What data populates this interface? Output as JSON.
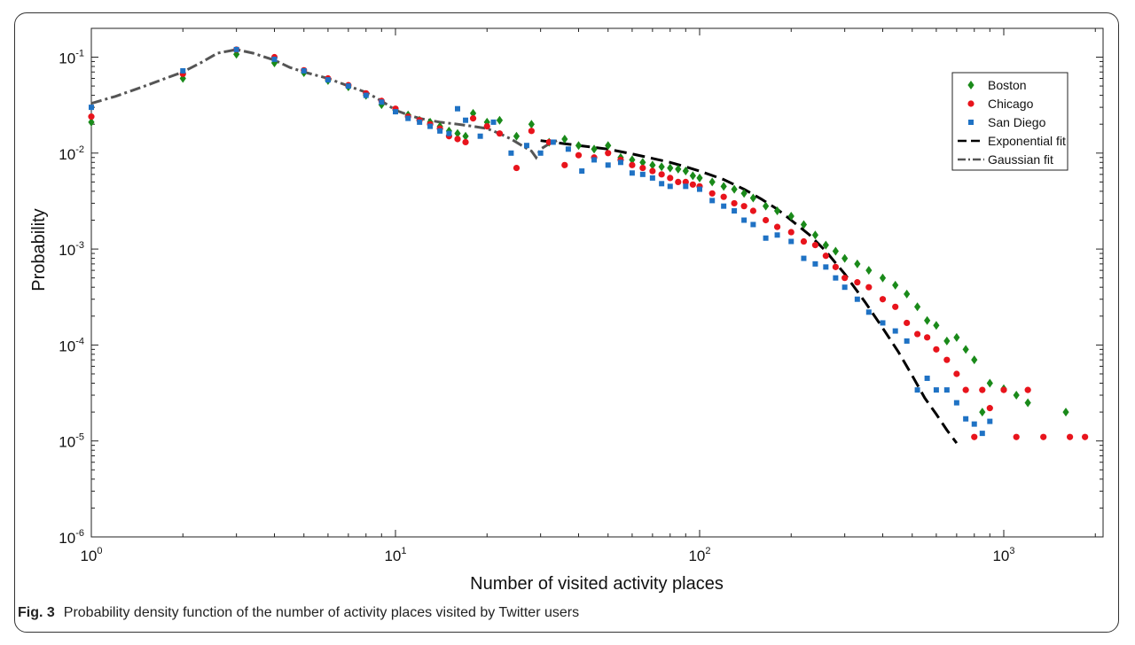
{
  "chart_data": {
    "type": "scatter",
    "xscale": "log",
    "yscale": "log",
    "xlim": [
      1,
      2000
    ],
    "ylim": [
      1e-06,
      0.2
    ],
    "xlabel": "Number of visited activity places",
    "ylabel": "Probability",
    "grid": false,
    "legend_position": "top-right",
    "x_ticks": [
      {
        "base": "10",
        "exp": "0",
        "value": 1
      },
      {
        "base": "10",
        "exp": "1",
        "value": 10
      },
      {
        "base": "10",
        "exp": "2",
        "value": 100
      },
      {
        "base": "10",
        "exp": "3",
        "value": 1000
      }
    ],
    "y_ticks": [
      {
        "base": "10",
        "exp": "-6",
        "value": 1e-06
      },
      {
        "base": "10",
        "exp": "-5",
        "value": 1e-05
      },
      {
        "base": "10",
        "exp": "-4",
        "value": 0.0001
      },
      {
        "base": "10",
        "exp": "-3",
        "value": 0.001
      },
      {
        "base": "10",
        "exp": "-2",
        "value": 0.01
      },
      {
        "base": "10",
        "exp": "-1",
        "value": 0.1
      }
    ],
    "series": [
      {
        "name": "Boston",
        "kind": "scatter",
        "marker": "diamond",
        "color": "#1a8a1a",
        "points": [
          [
            1,
            0.021
          ],
          [
            2,
            0.06
          ],
          [
            3,
            0.107
          ],
          [
            4,
            0.087
          ],
          [
            5,
            0.069
          ],
          [
            6,
            0.057
          ],
          [
            7,
            0.049
          ],
          [
            8,
            0.04
          ],
          [
            9,
            0.032
          ],
          [
            10,
            0.028
          ],
          [
            11,
            0.025
          ],
          [
            12,
            0.022
          ],
          [
            13,
            0.021
          ],
          [
            14,
            0.019
          ],
          [
            15,
            0.017
          ],
          [
            16,
            0.016
          ],
          [
            17,
            0.015
          ],
          [
            18,
            0.026
          ],
          [
            20,
            0.021
          ],
          [
            22,
            0.022
          ],
          [
            25,
            0.015
          ],
          [
            28,
            0.02
          ],
          [
            32,
            0.013
          ],
          [
            36,
            0.014
          ],
          [
            40,
            0.012
          ],
          [
            45,
            0.011
          ],
          [
            50,
            0.012
          ],
          [
            55,
            0.009
          ],
          [
            60,
            0.0085
          ],
          [
            65,
            0.008
          ],
          [
            70,
            0.0075
          ],
          [
            75,
            0.0072
          ],
          [
            80,
            0.007
          ],
          [
            85,
            0.0068
          ],
          [
            90,
            0.0065
          ],
          [
            95,
            0.0058
          ],
          [
            100,
            0.0055
          ],
          [
            110,
            0.005
          ],
          [
            120,
            0.0045
          ],
          [
            130,
            0.0042
          ],
          [
            140,
            0.0038
          ],
          [
            150,
            0.0034
          ],
          [
            165,
            0.0028
          ],
          [
            180,
            0.0025
          ],
          [
            200,
            0.0022
          ],
          [
            220,
            0.0018
          ],
          [
            240,
            0.0014
          ],
          [
            260,
            0.0011
          ],
          [
            280,
            0.00095
          ],
          [
            300,
            0.0008
          ],
          [
            330,
            0.0007
          ],
          [
            360,
            0.0006
          ],
          [
            400,
            0.0005
          ],
          [
            440,
            0.00042
          ],
          [
            480,
            0.00034
          ],
          [
            520,
            0.00025
          ],
          [
            560,
            0.00018
          ],
          [
            600,
            0.00016
          ],
          [
            650,
            0.00011
          ],
          [
            700,
            0.00012
          ],
          [
            750,
            9e-05
          ],
          [
            800,
            7e-05
          ],
          [
            850,
            2e-05
          ],
          [
            900,
            4e-05
          ],
          [
            1000,
            3.5e-05
          ],
          [
            1100,
            3e-05
          ],
          [
            1200,
            2.5e-05
          ],
          [
            1600,
            2e-05
          ]
        ]
      },
      {
        "name": "Chicago",
        "kind": "scatter",
        "marker": "circle",
        "color": "#e8141c",
        "points": [
          [
            1,
            0.024
          ],
          [
            2,
            0.067
          ],
          [
            3,
            0.12
          ],
          [
            4,
            0.1
          ],
          [
            5,
            0.073
          ],
          [
            6,
            0.06
          ],
          [
            7,
            0.051
          ],
          [
            8,
            0.042
          ],
          [
            9,
            0.035
          ],
          [
            10,
            0.029
          ],
          [
            11,
            0.024
          ],
          [
            12,
            0.022
          ],
          [
            13,
            0.02
          ],
          [
            14,
            0.018
          ],
          [
            15,
            0.015
          ],
          [
            16,
            0.014
          ],
          [
            17,
            0.013
          ],
          [
            18,
            0.023
          ],
          [
            20,
            0.019
          ],
          [
            22,
            0.016
          ],
          [
            25,
            0.007
          ],
          [
            28,
            0.017
          ],
          [
            32,
            0.013
          ],
          [
            36,
            0.0075
          ],
          [
            40,
            0.0095
          ],
          [
            45,
            0.009
          ],
          [
            50,
            0.01
          ],
          [
            55,
            0.0085
          ],
          [
            60,
            0.0075
          ],
          [
            65,
            0.007
          ],
          [
            70,
            0.0065
          ],
          [
            75,
            0.006
          ],
          [
            80,
            0.0055
          ],
          [
            85,
            0.005
          ],
          [
            90,
            0.005
          ],
          [
            95,
            0.0047
          ],
          [
            100,
            0.0045
          ],
          [
            110,
            0.0038
          ],
          [
            120,
            0.0035
          ],
          [
            130,
            0.003
          ],
          [
            140,
            0.0028
          ],
          [
            150,
            0.0025
          ],
          [
            165,
            0.002
          ],
          [
            180,
            0.0017
          ],
          [
            200,
            0.0015
          ],
          [
            220,
            0.0012
          ],
          [
            240,
            0.0011
          ],
          [
            260,
            0.00085
          ],
          [
            280,
            0.00065
          ],
          [
            300,
            0.0005
          ],
          [
            330,
            0.00045
          ],
          [
            360,
            0.0004
          ],
          [
            400,
            0.0003
          ],
          [
            440,
            0.00025
          ],
          [
            480,
            0.00017
          ],
          [
            520,
            0.00013
          ],
          [
            560,
            0.00012
          ],
          [
            600,
            9e-05
          ],
          [
            650,
            7e-05
          ],
          [
            700,
            5e-05
          ],
          [
            750,
            3.4e-05
          ],
          [
            800,
            1.1e-05
          ],
          [
            850,
            3.4e-05
          ],
          [
            900,
            2.2e-05
          ],
          [
            1000,
            3.4e-05
          ],
          [
            1100,
            1.1e-05
          ],
          [
            1200,
            3.4e-05
          ],
          [
            1350,
            1.1e-05
          ],
          [
            1650,
            1.1e-05
          ],
          [
            1850,
            1.1e-05
          ]
        ]
      },
      {
        "name": "San Diego",
        "kind": "scatter",
        "marker": "square",
        "color": "#1f72c4",
        "points": [
          [
            1,
            0.03
          ],
          [
            2,
            0.072
          ],
          [
            3,
            0.12
          ],
          [
            4,
            0.095
          ],
          [
            5,
            0.072
          ],
          [
            6,
            0.058
          ],
          [
            7,
            0.05
          ],
          [
            8,
            0.04
          ],
          [
            9,
            0.034
          ],
          [
            10,
            0.027
          ],
          [
            11,
            0.023
          ],
          [
            12,
            0.021
          ],
          [
            13,
            0.019
          ],
          [
            14,
            0.017
          ],
          [
            15,
            0.016
          ],
          [
            16,
            0.029
          ],
          [
            17,
            0.022
          ],
          [
            19,
            0.015
          ],
          [
            21,
            0.021
          ],
          [
            24,
            0.01
          ],
          [
            27,
            0.012
          ],
          [
            30,
            0.01
          ],
          [
            33,
            0.013
          ],
          [
            37,
            0.011
          ],
          [
            41,
            0.0065
          ],
          [
            45,
            0.0085
          ],
          [
            50,
            0.0075
          ],
          [
            55,
            0.008
          ],
          [
            60,
            0.0062
          ],
          [
            65,
            0.006
          ],
          [
            70,
            0.0055
          ],
          [
            75,
            0.0048
          ],
          [
            80,
            0.0045
          ],
          [
            90,
            0.0045
          ],
          [
            100,
            0.0042
          ],
          [
            110,
            0.0032
          ],
          [
            120,
            0.0028
          ],
          [
            130,
            0.0025
          ],
          [
            140,
            0.002
          ],
          [
            150,
            0.0018
          ],
          [
            165,
            0.0013
          ],
          [
            180,
            0.0014
          ],
          [
            200,
            0.0012
          ],
          [
            220,
            0.0008
          ],
          [
            240,
            0.0007
          ],
          [
            260,
            0.00065
          ],
          [
            280,
            0.0005
          ],
          [
            300,
            0.0004
          ],
          [
            330,
            0.0003
          ],
          [
            360,
            0.00022
          ],
          [
            400,
            0.00017
          ],
          [
            440,
            0.00014
          ],
          [
            480,
            0.00011
          ],
          [
            520,
            3.4e-05
          ],
          [
            560,
            4.5e-05
          ],
          [
            600,
            3.4e-05
          ],
          [
            650,
            3.4e-05
          ],
          [
            700,
            2.5e-05
          ],
          [
            750,
            1.7e-05
          ],
          [
            800,
            1.5e-05
          ],
          [
            850,
            1.2e-05
          ],
          [
            900,
            1.6e-05
          ]
        ]
      },
      {
        "name": "Exponential fit",
        "kind": "line",
        "dash": "long",
        "color": "#000000",
        "points": [
          [
            30,
            0.0135
          ],
          [
            40,
            0.012
          ],
          [
            50,
            0.011
          ],
          [
            60,
            0.0098
          ],
          [
            70,
            0.0088
          ],
          [
            80,
            0.008
          ],
          [
            90,
            0.0072
          ],
          [
            100,
            0.0065
          ],
          [
            120,
            0.0053
          ],
          [
            140,
            0.0042
          ],
          [
            160,
            0.0033
          ],
          [
            180,
            0.0026
          ],
          [
            200,
            0.002
          ],
          [
            230,
            0.0014
          ],
          [
            260,
            0.00095
          ],
          [
            300,
            0.00055
          ],
          [
            350,
            0.00028
          ],
          [
            400,
            0.00015
          ],
          [
            450,
            8.5e-05
          ],
          [
            500,
            4.8e-05
          ],
          [
            550,
            2.8e-05
          ],
          [
            600,
            1.9e-05
          ],
          [
            650,
            1.3e-05
          ],
          [
            700,
            9.5e-06
          ]
        ]
      },
      {
        "name": "Gaussian fit",
        "kind": "line",
        "dash": "dashdot",
        "color": "#555555",
        "points": [
          [
            1,
            0.033
          ],
          [
            1.2,
            0.039
          ],
          [
            1.5,
            0.05
          ],
          [
            1.8,
            0.062
          ],
          [
            2,
            0.07
          ],
          [
            2.3,
            0.088
          ],
          [
            2.6,
            0.11
          ],
          [
            3,
            0.12
          ],
          [
            3.4,
            0.11
          ],
          [
            4,
            0.093
          ],
          [
            4.5,
            0.078
          ],
          [
            5,
            0.07
          ],
          [
            6,
            0.06
          ],
          [
            7,
            0.05
          ],
          [
            8,
            0.043
          ],
          [
            9,
            0.035
          ],
          [
            10,
            0.028
          ],
          [
            11,
            0.025
          ],
          [
            12,
            0.023
          ],
          [
            14,
            0.021
          ],
          [
            16,
            0.02
          ],
          [
            18,
            0.019
          ],
          [
            20,
            0.018
          ],
          [
            22,
            0.016
          ],
          [
            24,
            0.014
          ],
          [
            26,
            0.012
          ],
          [
            28,
            0.0105
          ],
          [
            29,
            0.009
          ],
          [
            30,
            0.011
          ],
          [
            32,
            0.0125
          ],
          [
            34,
            0.0135
          ]
        ]
      }
    ]
  },
  "caption": {
    "label": "Fig. 3",
    "text": "Probability density function of the number of activity places visited by Twitter users"
  }
}
